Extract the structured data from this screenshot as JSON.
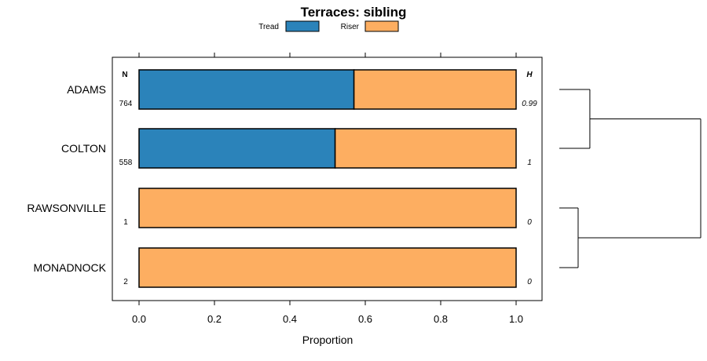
{
  "chart_data": {
    "type": "bar",
    "stacked": true,
    "orientation": "horizontal",
    "title": "Terraces: sibling",
    "xlabel": "Proportion",
    "ylabel": "",
    "xlim": [
      0,
      1
    ],
    "xticks": [
      "0.0",
      "0.2",
      "0.4",
      "0.6",
      "0.8",
      "1.0"
    ],
    "categories": [
      "ADAMS",
      "COLTON",
      "RAWSONVILLE",
      "MONADNOCK"
    ],
    "series": [
      {
        "name": "Tread",
        "color": "#2b83ba",
        "values": [
          0.57,
          0.52,
          0.0,
          0.0
        ]
      },
      {
        "name": "Riser",
        "color": "#fdae61",
        "values": [
          0.43,
          0.48,
          1.0,
          1.0
        ]
      }
    ],
    "n_header": "N",
    "h_header": "H",
    "n_values": [
      "764",
      "558",
      "1",
      "2"
    ],
    "h_values": [
      "0.99",
      "1",
      "0",
      "0"
    ],
    "dendrogram": {
      "type": "dendrogram",
      "orientation": "right",
      "merges": [
        [
          0,
          1
        ],
        [
          2,
          3
        ],
        [
          4,
          5
        ]
      ],
      "merge_heights": [
        0.15,
        0.06,
        1.0
      ]
    },
    "legend_position": "top"
  }
}
